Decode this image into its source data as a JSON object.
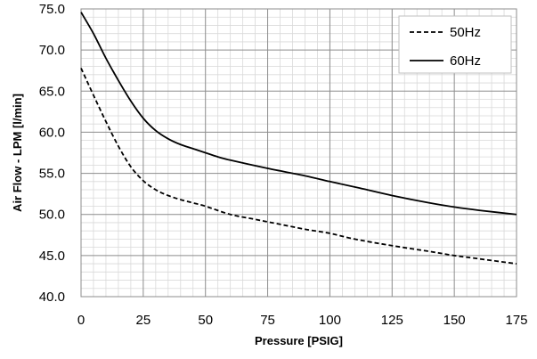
{
  "chart_data": {
    "type": "line",
    "title": "",
    "xlabel": "Pressure [PSIG]",
    "ylabel": "Air Flow - LPM  [l/min]",
    "xlim": [
      0,
      175
    ],
    "ylim": [
      40,
      75
    ],
    "x_ticks": [
      0,
      25,
      50,
      75,
      100,
      125,
      150,
      175
    ],
    "x_tick_labels": [
      "0",
      "25",
      "50",
      "75",
      "100",
      "125",
      "150",
      "175"
    ],
    "y_ticks": [
      40,
      45,
      50,
      55,
      60,
      65,
      70,
      75
    ],
    "y_tick_labels": [
      "40.0",
      "45.0",
      "50.0",
      "55.0",
      "60.0",
      "65.0",
      "70.0",
      "75.0"
    ],
    "grid": true,
    "legend_position": "top-right",
    "series": [
      {
        "name": "50Hz",
        "line_style": "dashed",
        "color": "#000000",
        "points": [
          [
            0,
            67.8
          ],
          [
            5,
            64.5
          ],
          [
            10,
            61.3
          ],
          [
            15,
            58.3
          ],
          [
            20,
            55.8
          ],
          [
            25,
            54.1
          ],
          [
            30,
            53.0
          ],
          [
            35,
            52.3
          ],
          [
            40,
            51.8
          ],
          [
            45,
            51.4
          ],
          [
            50,
            51.0
          ],
          [
            60,
            50.0
          ],
          [
            70,
            49.4
          ],
          [
            75,
            49.1
          ],
          [
            80,
            48.8
          ],
          [
            90,
            48.2
          ],
          [
            100,
            47.7
          ],
          [
            110,
            47.0
          ],
          [
            125,
            46.2
          ],
          [
            140,
            45.5
          ],
          [
            150,
            45.0
          ],
          [
            160,
            44.6
          ],
          [
            175,
            44.0
          ]
        ]
      },
      {
        "name": "60Hz",
        "line_style": "solid",
        "color": "#000000",
        "points": [
          [
            0,
            74.6
          ],
          [
            5,
            72.0
          ],
          [
            10,
            69.0
          ],
          [
            15,
            66.3
          ],
          [
            20,
            63.8
          ],
          [
            25,
            61.7
          ],
          [
            30,
            60.2
          ],
          [
            35,
            59.2
          ],
          [
            40,
            58.5
          ],
          [
            45,
            58.0
          ],
          [
            50,
            57.5
          ],
          [
            55,
            57.0
          ],
          [
            60,
            56.6
          ],
          [
            75,
            55.6
          ],
          [
            90,
            54.7
          ],
          [
            100,
            54.0
          ],
          [
            112,
            53.2
          ],
          [
            125,
            52.3
          ],
          [
            140,
            51.4
          ],
          [
            150,
            50.9
          ],
          [
            160,
            50.5
          ],
          [
            175,
            50.0
          ]
        ]
      }
    ]
  }
}
